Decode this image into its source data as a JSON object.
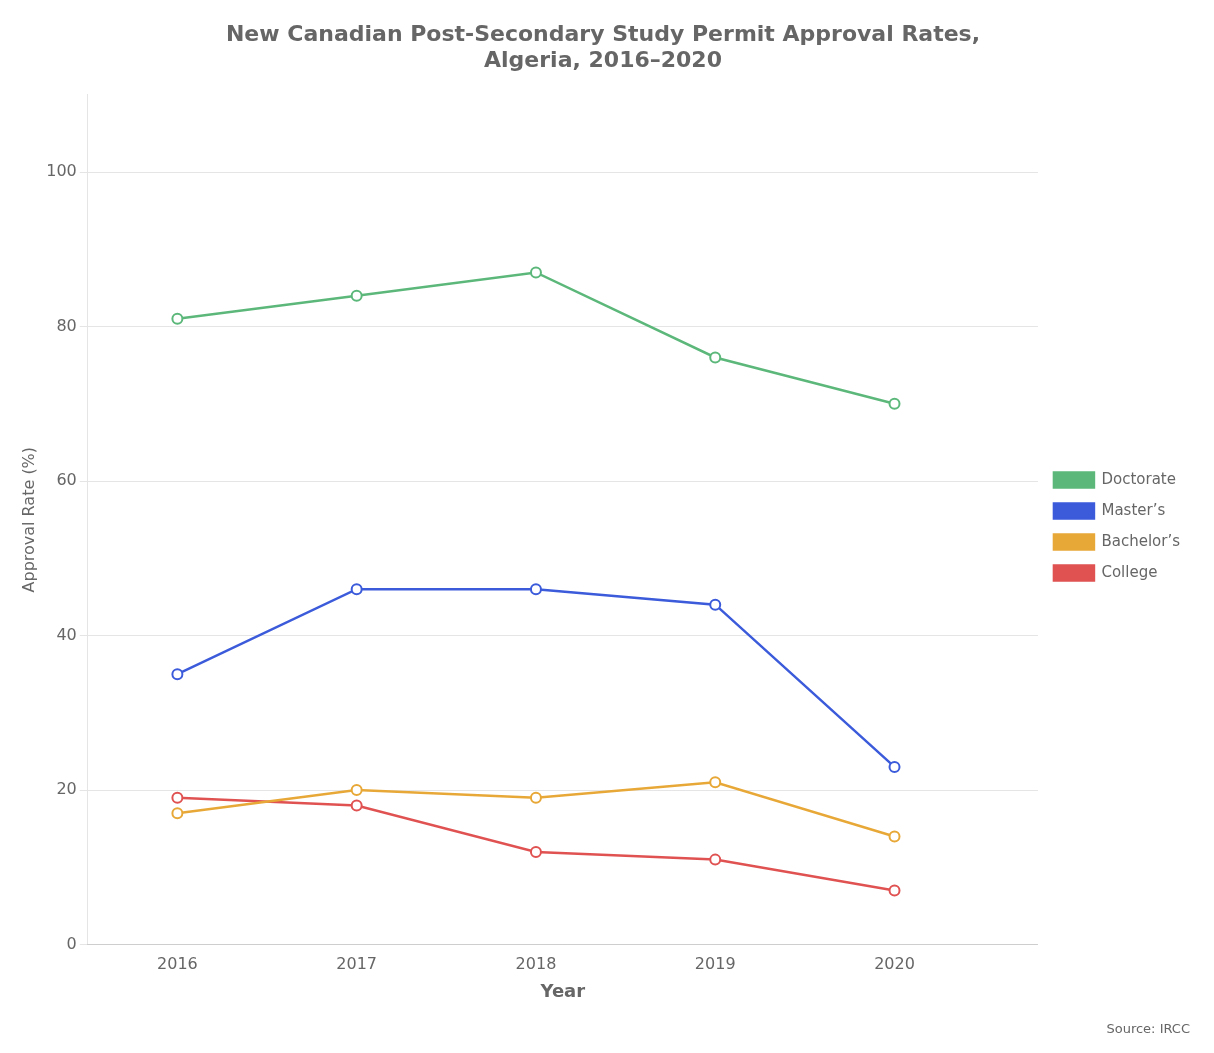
{
  "chart_data": {
    "type": "line",
    "title": "New Canadian Post-Secondary Study Permit Approval Rates,\nAlgeria, 2016–2020",
    "x_label": "Year",
    "y_label": "Approval Rate (%)",
    "annotations": [
      "Source: IRCC"
    ],
    "x": [
      2016,
      2017,
      2018,
      2019,
      2020
    ],
    "series": [
      {
        "name": "Doctorate",
        "color": "#5cb87a",
        "values": [
          81,
          84,
          87,
          76,
          70
        ]
      },
      {
        "name": "Master’s",
        "color": "#3b5bdb",
        "values": [
          35,
          46,
          46,
          44,
          23
        ]
      },
      {
        "name": "Bachelor’s",
        "color": "#e8a838",
        "values": [
          17,
          20,
          19,
          21,
          14
        ]
      },
      {
        "name": "College",
        "color": "#e05252",
        "values": [
          19,
          18,
          12,
          11,
          7
        ]
      }
    ],
    "xlim": [
      2015.5,
      2020.8
    ],
    "xticks": [
      2016,
      2017,
      2018,
      2019,
      2020
    ],
    "ylim": [
      0,
      110
    ],
    "yticks": [
      0,
      20,
      40,
      60,
      80,
      100
    ],
    "grid": "y",
    "legend": "right",
    "marker": "circle",
    "line_style": "solid"
  }
}
